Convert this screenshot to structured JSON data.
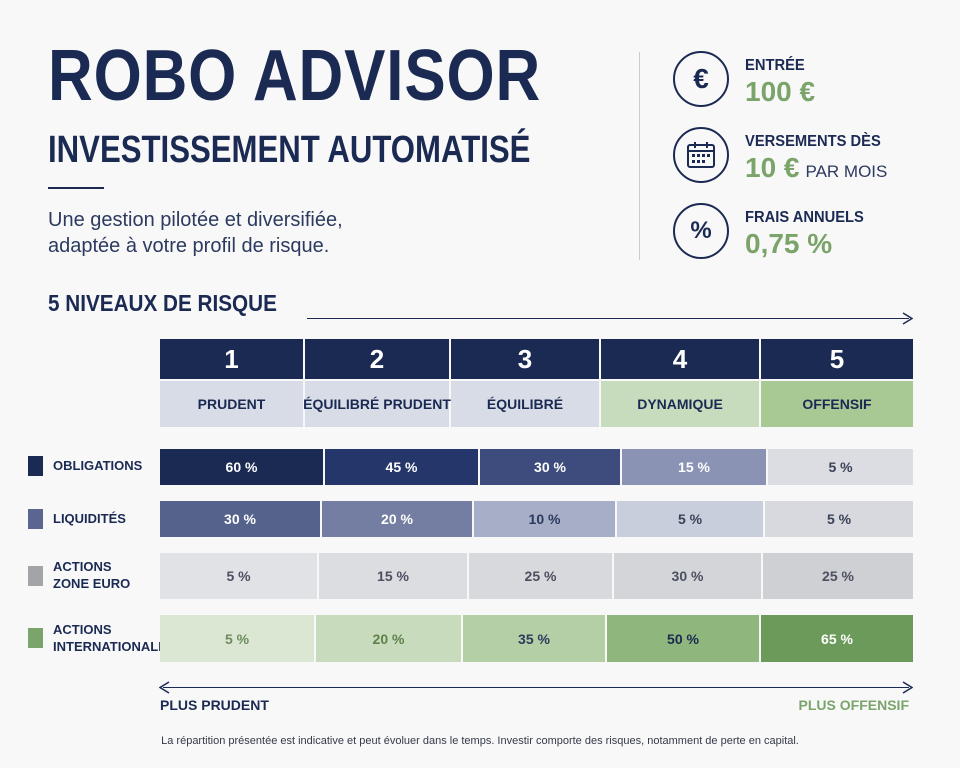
{
  "header": {
    "title": "ROBO ADVISOR",
    "subtitle": "INVESTISSEMENT AUTOMATISÉ",
    "description_line1": "Une gestion pilotée et diversifiée,",
    "description_line2": "adaptée à votre profil de risque."
  },
  "stats": [
    {
      "icon": "euro-icon",
      "glyph": "€",
      "label": "ENTRÉE",
      "value": "100 €",
      "suffix": ""
    },
    {
      "icon": "calendar-icon",
      "glyph": "",
      "label": "VERSEMENTS DÈS",
      "value": "10 €",
      "suffix": "PAR MOIS"
    },
    {
      "icon": "percent-icon",
      "glyph": "%",
      "label": "FRAIS ANNUELS",
      "value": "0,75 %",
      "suffix": ""
    }
  ],
  "risk": {
    "section_title": "5 NIVEAUX DE RISQUE",
    "levels": [
      {
        "number": "1",
        "name": "PRUDENT"
      },
      {
        "number": "2",
        "name": "ÉQUILIBRÉ PRUDENT"
      },
      {
        "number": "3",
        "name": "ÉQUILIBRÉ"
      },
      {
        "number": "4",
        "name": "DYNAMIQUE"
      },
      {
        "number": "5",
        "name": "OFFENSIF"
      }
    ],
    "assets": [
      {
        "label_line1": "OBLIGATIONS",
        "label_line2": "",
        "color": "#1b2a52",
        "values": [
          "60 %",
          "45 %",
          "30 %",
          "15 %",
          "5 %"
        ]
      },
      {
        "label_line1": "LIQUIDITÉS",
        "label_line2": "",
        "color": "#5a6690",
        "values": [
          "30 %",
          "20 %",
          "10 %",
          "5 %",
          "5 %"
        ]
      },
      {
        "label_line1": "ACTIONS",
        "label_line2": "ZONE EURO",
        "color": "#a3a4a8",
        "values": [
          "5 %",
          "15 %",
          "25 %",
          "30 %",
          "25 %"
        ]
      },
      {
        "label_line1": "ACTIONS",
        "label_line2": "INTERNATIONALES",
        "color": "#7aa46a",
        "values": [
          "5 %",
          "20 %",
          "35 %",
          "50 %",
          "65 %"
        ]
      }
    ],
    "low_label": "PLUS PRUDENT",
    "high_label": "PLUS OFFENSIF"
  },
  "footnote": "La répartition présentée est indicative et peut évoluer dans le temps. Investir comporte des risques, notamment de perte en capital.",
  "colors": {
    "navy": "#1b2a52",
    "green": "#7aa46a",
    "background": "#f8f8f9"
  }
}
